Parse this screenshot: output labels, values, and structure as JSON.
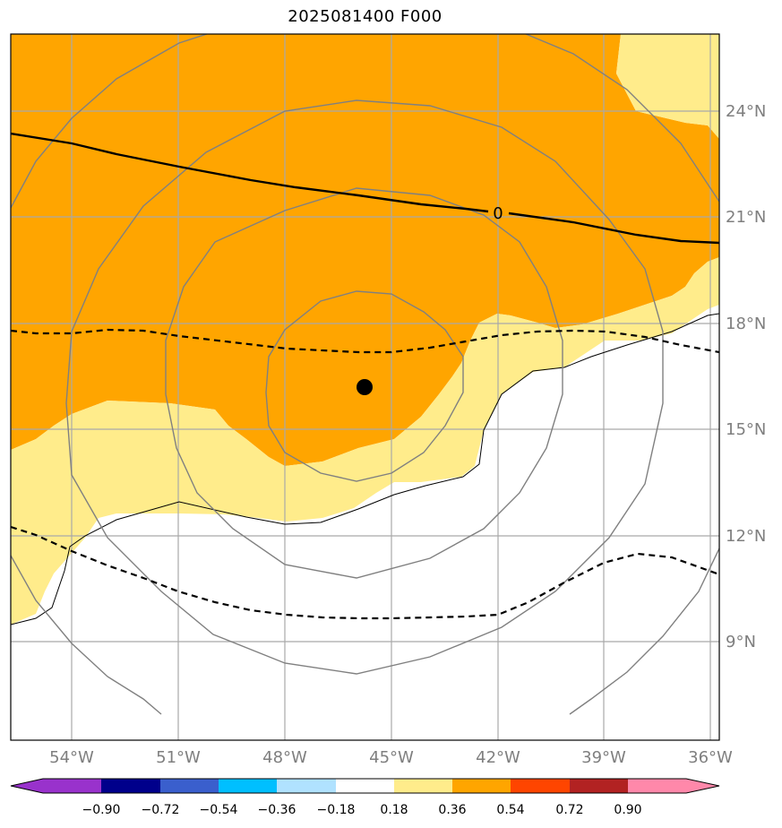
{
  "title": "2025081400 F000",
  "lon_labels": [
    "54°W",
    "51°W",
    "48°W",
    "45°W",
    "42°W",
    "39°W",
    "36°W"
  ],
  "lat_labels": [
    "24°N",
    "21°N",
    "18°N",
    "15°N",
    "12°N",
    "9°N"
  ],
  "contour_label": "0",
  "colorbar": {
    "ticks": [
      "−0.90",
      "−0.72",
      "−0.54",
      "−0.36",
      "−0.18",
      "0.18",
      "0.36",
      "0.54",
      "0.72",
      "0.90"
    ],
    "colors": [
      "#9932cc",
      "#00008b",
      "#3a5fcd",
      "#00bfff",
      "#b0e2ff",
      "#ffffff",
      "#ffec8b",
      "#ffa500",
      "#ff4500",
      "#b22222",
      "#ff88aa"
    ]
  },
  "field_colors": {
    "orange": "#ffa500",
    "yellow": "#ffec8b",
    "coast": "#000000",
    "rings": "#808080",
    "grid": "#a9a9a9"
  },
  "storm_center": {
    "lon": -45.8,
    "lat": 16.2
  }
}
